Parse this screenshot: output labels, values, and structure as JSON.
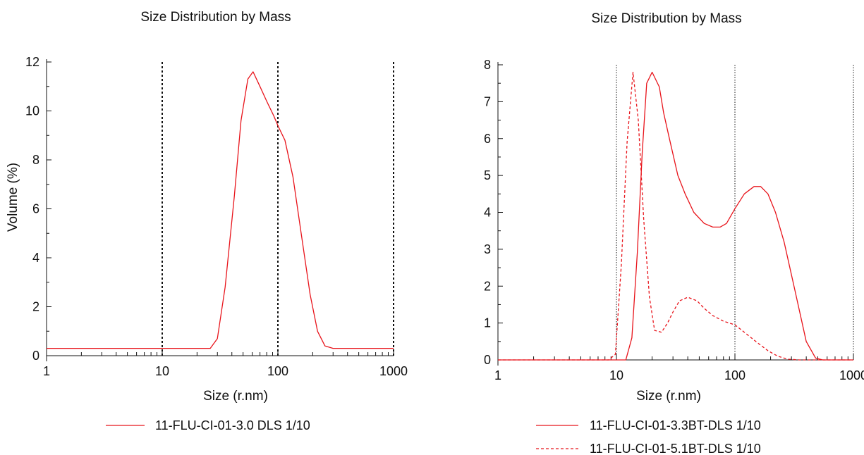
{
  "colors": {
    "series": "#e8141b",
    "axis": "#111111",
    "grid": "#111111"
  },
  "chart_data": [
    {
      "type": "line",
      "title": "Size Distribution by Mass",
      "xlabel": "Size (r.nm)",
      "ylabel": "Volume (%)",
      "x_scale": "log",
      "xlim": [
        1,
        1000
      ],
      "ylim": [
        0,
        12
      ],
      "x_ticks": [
        "1",
        "10",
        "100",
        "1000"
      ],
      "y_ticks": [
        "0",
        "2",
        "4",
        "6",
        "8",
        "10",
        "12"
      ],
      "grid": "vertical dotted lines at decades",
      "legend_position": "bottom",
      "series": [
        {
          "name": "11-FLU-CI-01-3.0 DLS 1/10",
          "style": "solid",
          "x": [
            1,
            20,
            26,
            30,
            35,
            42,
            48,
            55,
            61,
            70,
            80,
            92,
            100,
            115,
            135,
            160,
            190,
            220,
            255,
            300,
            400,
            700,
            1000
          ],
          "y": [
            0.3,
            0.3,
            0.3,
            0.7,
            2.8,
            6.5,
            9.6,
            11.3,
            11.6,
            11.0,
            10.4,
            9.8,
            9.4,
            8.8,
            7.3,
            4.9,
            2.5,
            1.0,
            0.4,
            0.3,
            0.3,
            0.3,
            0.3
          ]
        }
      ]
    },
    {
      "type": "line",
      "title": "Size Distribution by Mass",
      "xlabel": "Size (r.nm)",
      "ylabel": "",
      "x_scale": "log",
      "xlim": [
        1,
        1000
      ],
      "ylim": [
        0,
        8
      ],
      "x_ticks": [
        "1",
        "10",
        "100",
        "1000"
      ],
      "y_ticks": [
        "0",
        "1",
        "2",
        "3",
        "4",
        "5",
        "6",
        "7",
        "8"
      ],
      "grid": "vertical dotted lines at decades",
      "legend_position": "bottom",
      "series": [
        {
          "name": "11-FLU-CI-01-3.3BT-DLS 1/10",
          "style": "solid",
          "x": [
            1,
            10,
            12,
            13.5,
            15,
            16.5,
            18,
            20,
            23,
            25,
            28,
            33,
            38,
            45,
            55,
            65,
            75,
            85,
            100,
            120,
            145,
            165,
            190,
            220,
            260,
            320,
            400,
            480,
            550,
            1000
          ],
          "y": [
            0,
            0,
            0,
            0.6,
            2.9,
            5.6,
            7.5,
            7.8,
            7.4,
            6.7,
            6.0,
            5.0,
            4.5,
            4.0,
            3.7,
            3.6,
            3.6,
            3.7,
            4.1,
            4.5,
            4.7,
            4.7,
            4.5,
            4.0,
            3.2,
            1.9,
            0.5,
            0.05,
            0,
            0
          ]
        },
        {
          "name": "11-FLU-CI-01-5.1BT-DLS 1/10",
          "style": "dashed",
          "x": [
            1,
            8.6,
            9.8,
            11,
            12.3,
            13.8,
            15.3,
            17,
            19,
            21,
            24,
            27,
            30,
            34,
            40,
            48,
            55,
            65,
            80,
            100,
            120,
            150,
            190,
            230,
            280,
            350,
            1000
          ],
          "y": [
            0,
            0,
            0.15,
            2.6,
            5.9,
            7.8,
            6.5,
            3.8,
            1.7,
            0.8,
            0.75,
            1.0,
            1.3,
            1.6,
            1.7,
            1.6,
            1.4,
            1.2,
            1.05,
            0.95,
            0.75,
            0.5,
            0.25,
            0.1,
            0.02,
            0,
            0
          ]
        }
      ]
    }
  ]
}
